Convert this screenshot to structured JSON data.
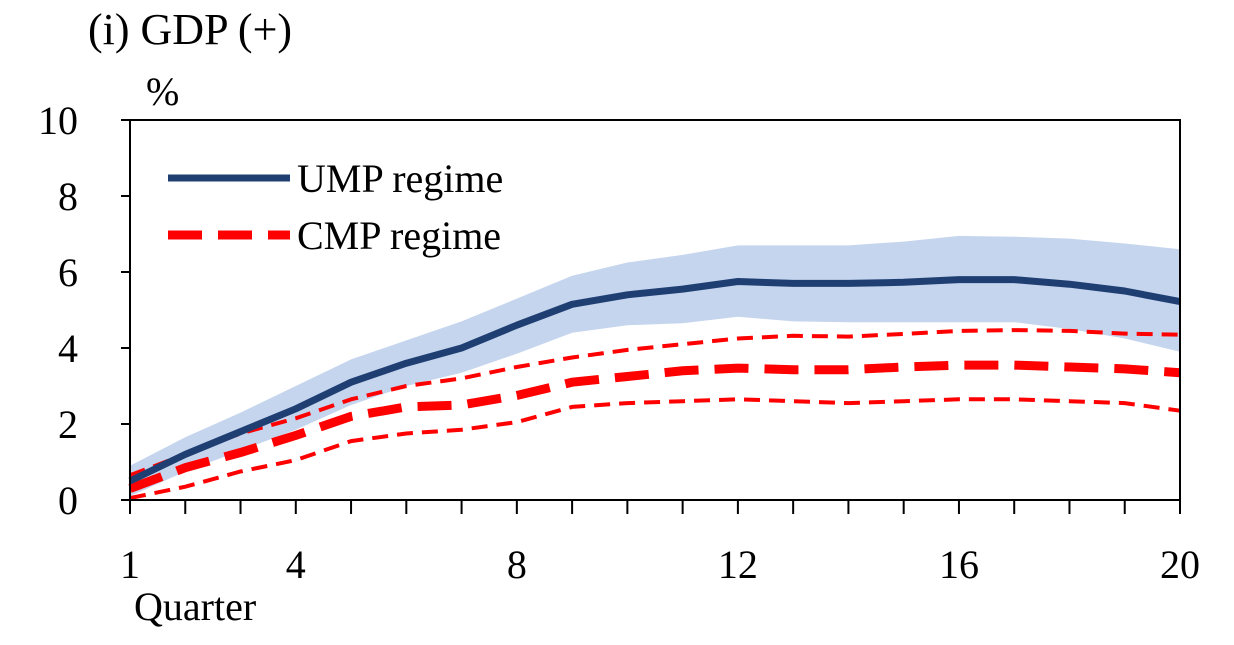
{
  "chart_data": {
    "type": "line",
    "title": "(i) GDP (+)",
    "ylabel": "%",
    "xlabel": "Quarter",
    "xlim": [
      1,
      20
    ],
    "ylim": [
      0,
      10
    ],
    "x_ticks": [
      1,
      4,
      8,
      12,
      16,
      20
    ],
    "y_ticks": [
      0,
      2,
      4,
      6,
      8,
      10
    ],
    "grid": false,
    "legend_position": "top-left",
    "x": [
      1,
      2,
      3,
      4,
      5,
      6,
      7,
      8,
      9,
      10,
      11,
      12,
      13,
      14,
      15,
      16,
      17,
      18,
      19,
      20
    ],
    "series": [
      {
        "name": "UMP regime",
        "color": "#1f3f73",
        "style": "solid",
        "values": [
          0.5,
          1.2,
          1.8,
          2.4,
          3.1,
          3.6,
          4.0,
          4.6,
          5.15,
          5.4,
          5.55,
          5.75,
          5.7,
          5.7,
          5.73,
          5.8,
          5.8,
          5.68,
          5.5,
          5.22
        ],
        "band_upper": [
          0.9,
          1.65,
          2.3,
          3.0,
          3.7,
          4.2,
          4.7,
          5.3,
          5.9,
          6.25,
          6.45,
          6.7,
          6.7,
          6.7,
          6.8,
          6.95,
          6.93,
          6.88,
          6.75,
          6.6
        ],
        "band_lower": [
          0.1,
          0.75,
          1.3,
          1.85,
          2.5,
          3.0,
          3.35,
          3.85,
          4.4,
          4.6,
          4.65,
          4.82,
          4.7,
          4.68,
          4.68,
          4.68,
          4.68,
          4.5,
          4.25,
          3.9
        ],
        "band_color": "#c5d5ee"
      },
      {
        "name": "CMP regime",
        "color": "#ff0000",
        "style": "dashed",
        "values": [
          0.3,
          0.85,
          1.25,
          1.7,
          2.2,
          2.45,
          2.5,
          2.75,
          3.1,
          3.25,
          3.4,
          3.47,
          3.43,
          3.43,
          3.5,
          3.55,
          3.55,
          3.5,
          3.45,
          3.35
        ],
        "upper": [
          0.65,
          1.2,
          1.75,
          2.15,
          2.65,
          3.0,
          3.2,
          3.5,
          3.75,
          3.95,
          4.1,
          4.25,
          4.32,
          4.3,
          4.37,
          4.45,
          4.47,
          4.45,
          4.38,
          4.35
        ],
        "lower": [
          0.05,
          0.35,
          0.75,
          1.05,
          1.55,
          1.75,
          1.85,
          2.05,
          2.45,
          2.55,
          2.6,
          2.65,
          2.6,
          2.55,
          2.6,
          2.65,
          2.65,
          2.6,
          2.55,
          2.35
        ]
      }
    ]
  }
}
